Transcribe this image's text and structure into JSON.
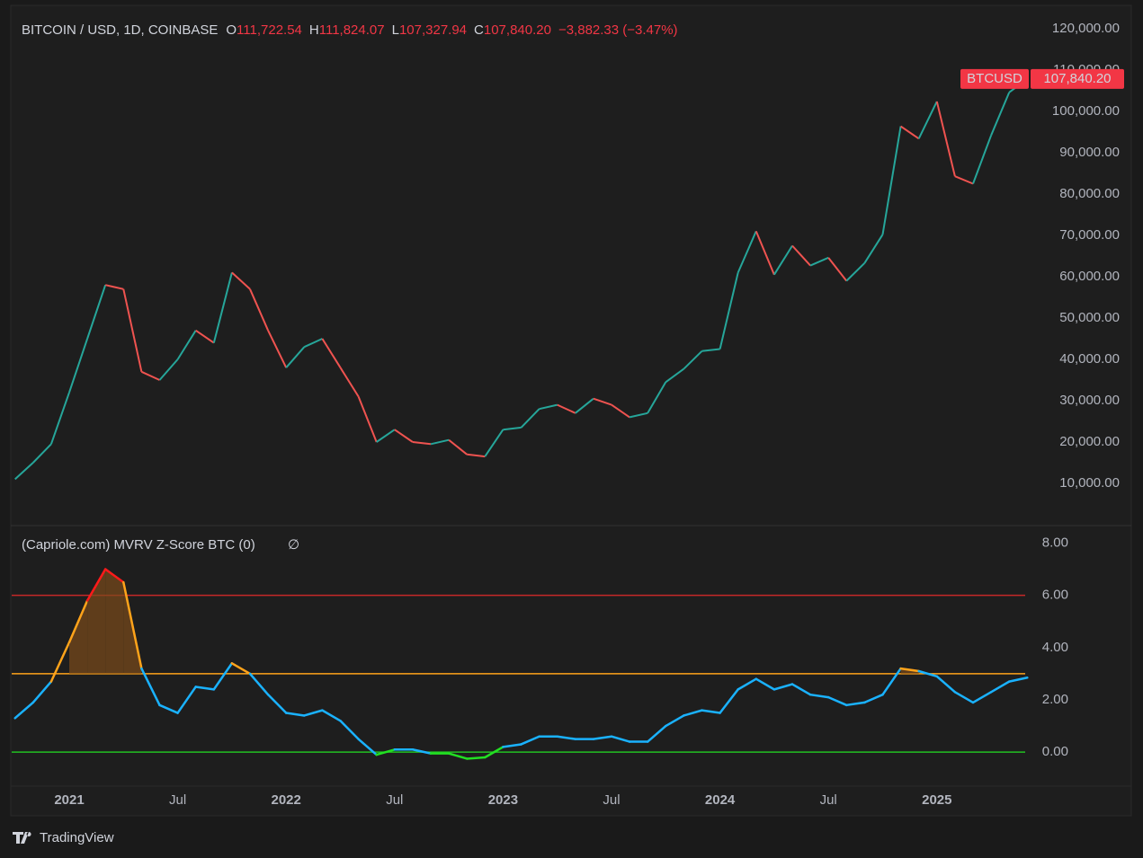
{
  "header": {
    "symbol": "BITCOIN / USD, 1D, COINBASE",
    "ohlc": [
      {
        "key": "O",
        "value": "111,722.54"
      },
      {
        "key": "H",
        "value": "111,824.07"
      },
      {
        "key": "L",
        "value": "107,327.94"
      },
      {
        "key": "C",
        "value": "107,840.20"
      }
    ],
    "change": "−3,882.33 (−3.47%)"
  },
  "chart_data": [
    {
      "type": "line",
      "price_tag": {
        "name": "BTCUSD",
        "value": "107,840.20"
      },
      "up_color": "#26a69a",
      "down_color": "#ef5350",
      "x": [
        "2020-10",
        "2020-11",
        "2020-12",
        "2021-01",
        "2021-02",
        "2021-03",
        "2021-04",
        "2021-05",
        "2021-06",
        "2021-07",
        "2021-08",
        "2021-09",
        "2021-10",
        "2021-11",
        "2021-12",
        "2022-01",
        "2022-02",
        "2022-03",
        "2022-04",
        "2022-05",
        "2022-06",
        "2022-07",
        "2022-08",
        "2022-09",
        "2022-10",
        "2022-11",
        "2022-12",
        "2023-01",
        "2023-02",
        "2023-03",
        "2023-04",
        "2023-05",
        "2023-06",
        "2023-07",
        "2023-08",
        "2023-09",
        "2023-10",
        "2023-11",
        "2023-12",
        "2024-01",
        "2024-02",
        "2024-03",
        "2024-04",
        "2024-05",
        "2024-06",
        "2024-07",
        "2024-08",
        "2024-09",
        "2024-10",
        "2024-11",
        "2024-12",
        "2025-01",
        "2025-02",
        "2025-03",
        "2025-04",
        "2025-05",
        "2025-06"
      ],
      "values": [
        11000,
        15000,
        19500,
        32000,
        45000,
        58000,
        57000,
        37000,
        35000,
        40000,
        47000,
        44000,
        61000,
        57000,
        47000,
        38000,
        43000,
        45000,
        38000,
        31000,
        20000,
        23000,
        20000,
        19500,
        20500,
        17000,
        16500,
        23000,
        23500,
        28000,
        29000,
        27000,
        30500,
        29000,
        26000,
        27000,
        34500,
        37700,
        42000,
        42500,
        61000,
        71000,
        60500,
        67500,
        62700,
        64600,
        59000,
        63300,
        70200,
        96400,
        93400,
        102400,
        84300,
        82500,
        94200,
        104600,
        107840.2
      ],
      "ylim": [
        0,
        125000
      ],
      "yticks": [
        {
          "value": 10000,
          "label": "10,000.00"
        },
        {
          "value": 20000,
          "label": "20,000.00"
        },
        {
          "value": 30000,
          "label": "30,000.00"
        },
        {
          "value": 40000,
          "label": "40,000.00"
        },
        {
          "value": 50000,
          "label": "50,000.00"
        },
        {
          "value": 60000,
          "label": "60,000.00"
        },
        {
          "value": 70000,
          "label": "70,000.00"
        },
        {
          "value": 80000,
          "label": "80,000.00"
        },
        {
          "value": 90000,
          "label": "90,000.00"
        },
        {
          "value": 100000,
          "label": "100,000.00"
        },
        {
          "value": 110000,
          "label": "110,000.00"
        },
        {
          "value": 120000,
          "label": "120,000.00"
        }
      ]
    },
    {
      "type": "zone-line",
      "title": "(Capriole.com) MVRV Z-Score BTC (0)",
      "title_icon": "∅",
      "zones": [
        {
          "above": 6,
          "color": "#ff1a1a"
        },
        {
          "above": 3,
          "color": "#ffa31a"
        },
        {
          "above": 0,
          "color": "#1ab2ff"
        },
        {
          "color": "#22e022"
        }
      ],
      "fill_color": "#7a4a1a",
      "reference_lines": [
        {
          "value": 6,
          "color": "#c62828"
        },
        {
          "value": 3,
          "color": "#ffa31a"
        },
        {
          "value": 0,
          "color": "#22c022"
        }
      ],
      "x": [
        "2020-10",
        "2020-11",
        "2020-12",
        "2021-01",
        "2021-02",
        "2021-03",
        "2021-04",
        "2021-05",
        "2021-06",
        "2021-07",
        "2021-08",
        "2021-09",
        "2021-10",
        "2021-11",
        "2021-12",
        "2022-01",
        "2022-02",
        "2022-03",
        "2022-04",
        "2022-05",
        "2022-06",
        "2022-07",
        "2022-08",
        "2022-09",
        "2022-10",
        "2022-11",
        "2022-12",
        "2023-01",
        "2023-02",
        "2023-03",
        "2023-04",
        "2023-05",
        "2023-06",
        "2023-07",
        "2023-08",
        "2023-09",
        "2023-10",
        "2023-11",
        "2023-12",
        "2024-01",
        "2024-02",
        "2024-03",
        "2024-04",
        "2024-05",
        "2024-06",
        "2024-07",
        "2024-08",
        "2024-09",
        "2024-10",
        "2024-11",
        "2024-12",
        "2025-01",
        "2025-02",
        "2025-03",
        "2025-04",
        "2025-05",
        "2025-06"
      ],
      "values": [
        1.3,
        1.9,
        2.7,
        4.2,
        5.8,
        7.0,
        6.5,
        3.2,
        1.8,
        1.5,
        2.5,
        2.4,
        3.4,
        3.0,
        2.2,
        1.5,
        1.4,
        1.6,
        1.2,
        0.5,
        -0.1,
        0.1,
        0.1,
        -0.05,
        -0.05,
        -0.25,
        -0.2,
        0.2,
        0.3,
        0.6,
        0.6,
        0.5,
        0.5,
        0.6,
        0.4,
        0.4,
        1.0,
        1.4,
        1.6,
        1.5,
        2.4,
        2.8,
        2.4,
        2.6,
        2.2,
        2.1,
        1.8,
        1.9,
        2.2,
        3.2,
        3.1,
        2.9,
        2.3,
        1.9,
        2.3,
        2.7,
        2.85
      ],
      "ylim": [
        -1.3,
        8.6
      ],
      "yticks": [
        {
          "value": 0,
          "label": "0.00"
        },
        {
          "value": 2,
          "label": "2.00"
        },
        {
          "value": 4,
          "label": "4.00"
        },
        {
          "value": 6,
          "label": "6.00"
        },
        {
          "value": 8,
          "label": "8.00"
        }
      ],
      "xticks": [
        {
          "value": "2021-01",
          "label": "2021"
        },
        {
          "value": "2021-07",
          "label": "Jul"
        },
        {
          "value": "2022-01",
          "label": "2022"
        },
        {
          "value": "2022-07",
          "label": "Jul"
        },
        {
          "value": "2023-01",
          "label": "2023"
        },
        {
          "value": "2023-07",
          "label": "Jul"
        },
        {
          "value": "2024-01",
          "label": "2024"
        },
        {
          "value": "2024-07",
          "label": "Jul"
        },
        {
          "value": "2025-01",
          "label": "2025"
        }
      ]
    }
  ],
  "footer": {
    "brand": "TradingView"
  }
}
